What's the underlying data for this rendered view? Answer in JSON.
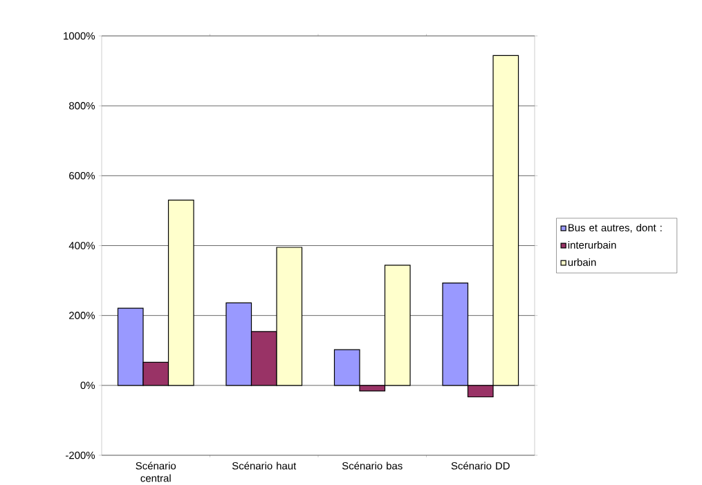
{
  "chart_data": {
    "type": "bar",
    "categories": [
      "Scénario central",
      "Scénario haut",
      "Scénario bas",
      "Scénario DD"
    ],
    "series": [
      {
        "name": "Bus et autres, dont :",
        "color": "#9999ff",
        "values": [
          221,
          236,
          102,
          293
        ]
      },
      {
        "name": "interurbain",
        "color": "#993366",
        "values": [
          66,
          154,
          -16,
          -33
        ]
      },
      {
        "name": "urbain",
        "color": "#ffffcc",
        "values": [
          530,
          395,
          344,
          944
        ]
      }
    ],
    "ylim": [
      -200,
      1000
    ],
    "yticks": [
      {
        "value": -200,
        "label": "-200%"
      },
      {
        "value": 0,
        "label": "0%"
      },
      {
        "value": 200,
        "label": "200%"
      },
      {
        "value": 400,
        "label": "400%"
      },
      {
        "value": 600,
        "label": "600%"
      },
      {
        "value": 800,
        "label": "800%"
      },
      {
        "value": 1000,
        "label": "1000%"
      }
    ],
    "grid": "y",
    "legend": "right"
  }
}
